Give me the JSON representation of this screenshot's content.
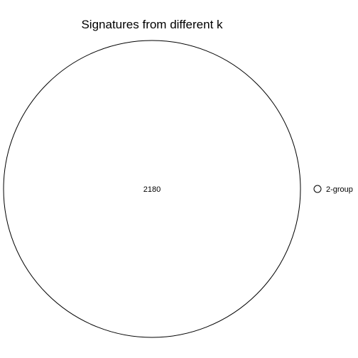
{
  "diagram": {
    "title": "Signatures from different k",
    "sets": [
      {
        "name": "2-group",
        "count": "2180",
        "stroke_color": "#000000",
        "fill_color": "#ffffff"
      }
    ]
  }
}
